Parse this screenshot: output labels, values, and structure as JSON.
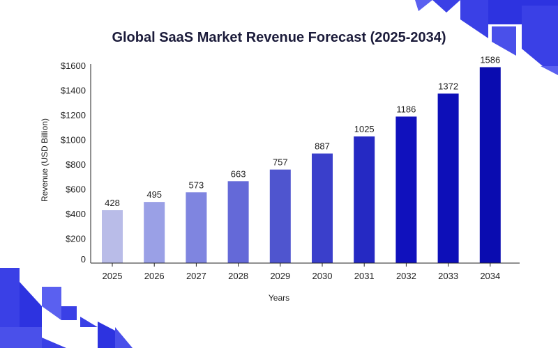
{
  "chart_data": {
    "type": "bar",
    "title": "Global SaaS Market Revenue Forecast (2025-2034)",
    "xlabel": "Years",
    "ylabel": "Revenue (USD Billion)",
    "categories": [
      "2025",
      "2026",
      "2027",
      "2028",
      "2029",
      "2030",
      "2031",
      "2032",
      "2033",
      "2034"
    ],
    "values": [
      428,
      495,
      573,
      663,
      757,
      887,
      1025,
      1186,
      1372,
      1586
    ],
    "value_labels": [
      "428",
      "495",
      "573",
      "663",
      "757",
      "887",
      "1025",
      "1186",
      "1372",
      "1586"
    ],
    "ylim": [
      0,
      1600
    ],
    "y_ticks": [
      0,
      200,
      400,
      600,
      800,
      1000,
      1200,
      1400,
      1600
    ],
    "y_tick_labels": [
      "0",
      "$200",
      "$400",
      "$600",
      "$800",
      "$1000",
      "$1200",
      "$1400",
      "$1600"
    ],
    "grid": false,
    "legend": "none",
    "bar_colors": [
      "#b9bce8",
      "#9aa0e6",
      "#7f85e0",
      "#6469d8",
      "#4f55cf",
      "#3a3fcb",
      "#2529c3",
      "#1011bd",
      "#0d0fb8",
      "#0a0cb0"
    ],
    "accent": "#3a40e6"
  }
}
